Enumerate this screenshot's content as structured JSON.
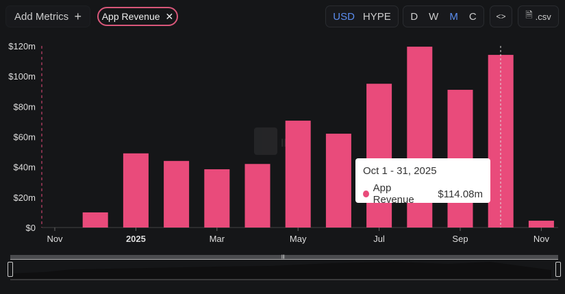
{
  "toolbar": {
    "add_metrics": "Add Metrics",
    "add_icon": "+",
    "metric_chip": "App Revenue",
    "chip_close": "✕",
    "currency": [
      "USD",
      "HYPE"
    ],
    "currency_selected": "USD",
    "periods": [
      "D",
      "W",
      "M",
      "C"
    ],
    "period_selected": "M",
    "embed": "<>",
    "csv": ".csv"
  },
  "colors": {
    "bar": "#e94b7b",
    "accent": "#5b8def",
    "background": "#151618"
  },
  "tooltip": {
    "date": "Oct 1 - 31, 2025",
    "series": "App Revenue",
    "value": "$114.08m"
  },
  "chart_data": {
    "type": "bar",
    "categories": [
      "Nov 2024",
      "Dec 2024",
      "Jan 2025",
      "Feb 2025",
      "Mar 2025",
      "Apr 2025",
      "May 2025",
      "Jun 2025",
      "Jul 2025",
      "Aug 2025",
      "Sep 2025",
      "Oct 2025",
      "Nov 2025"
    ],
    "series": [
      {
        "name": "App Revenue",
        "values": [
          0,
          10,
          49,
          44,
          38.5,
          42,
          70.6,
          62,
          95,
          119.5,
          91,
          114.08,
          4.5
        ]
      }
    ],
    "ylim": [
      0,
      120
    ],
    "yticks": [
      "$0",
      "$20m",
      "$40m",
      "$60m",
      "$80m",
      "$100m",
      "$120m"
    ],
    "xticks": [
      "Nov",
      "2025",
      "Mar",
      "May",
      "Jul",
      "Sep",
      "Nov"
    ],
    "grid": false
  }
}
